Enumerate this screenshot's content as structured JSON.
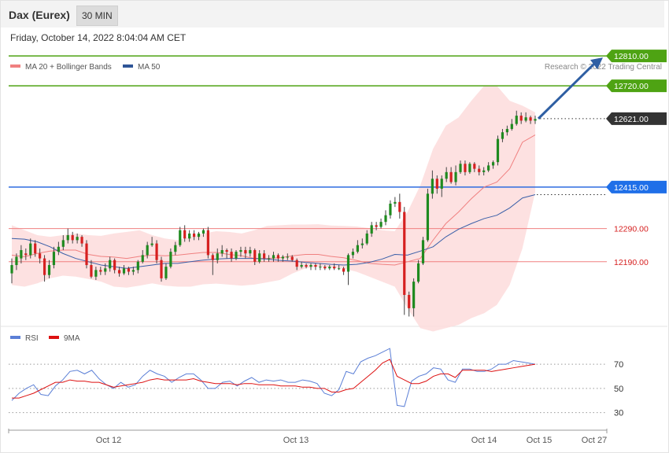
{
  "header": {
    "title": "Dax (Eurex)",
    "timeframe": "30 MIN"
  },
  "datetime": "Friday, October 14, 2022 8:04:04 AM CET",
  "legend": {
    "ma20": {
      "label": "MA 20 + Bollinger Bands",
      "color": "#f08080"
    },
    "ma50": {
      "label": "MA 50",
      "color": "#2f5597"
    }
  },
  "credit": "Research © 2022 Trading Central",
  "rsi_legend": {
    "rsi": {
      "label": "RSI",
      "color": "#5b7fd6"
    },
    "ma9": {
      "label": "9MA",
      "color": "#dd1111"
    }
  },
  "colors": {
    "up": "#1f8a1f",
    "down": "#d62020",
    "resistance": "#4ea313",
    "support": "#2d6be0",
    "level": "#f08080",
    "price": "#333333",
    "arrow": "#2f5fa3",
    "band": "#fddcdc"
  },
  "chart_data": [
    {
      "type": "candlestick",
      "title": "",
      "ylim": [
        12000,
        12860
      ],
      "x_labels": [
        "Oct 12",
        "Oct 13",
        "Oct 14",
        "Oct 15",
        "Oct 27"
      ],
      "levels": [
        {
          "value": 12810.0,
          "label": "12810.00",
          "kind": "resistance"
        },
        {
          "value": 12720.0,
          "label": "12720.00",
          "kind": "resistance"
        },
        {
          "value": 12621.0,
          "label": "12621.00",
          "kind": "price"
        },
        {
          "value": 12415.0,
          "label": "12415.00",
          "kind": "support"
        },
        {
          "value": 12290.0,
          "label": "12290.00",
          "kind": "level"
        },
        {
          "value": 12190.0,
          "label": "12190.00",
          "kind": "level"
        }
      ],
      "candles": [
        [
          12155,
          12180,
          12125,
          12200
        ],
        [
          12180,
          12205,
          12165,
          12215
        ],
        [
          12200,
          12225,
          12185,
          12240
        ],
        [
          12215,
          12210,
          12195,
          12230
        ],
        [
          12210,
          12245,
          12200,
          12260
        ],
        [
          12245,
          12215,
          12205,
          12255
        ],
        [
          12215,
          12200,
          12185,
          12230
        ],
        [
          12200,
          12150,
          12130,
          12210
        ],
        [
          12150,
          12180,
          12140,
          12195
        ],
        [
          12180,
          12220,
          12170,
          12235
        ],
        [
          12220,
          12235,
          12210,
          12250
        ],
        [
          12235,
          12255,
          12225,
          12270
        ],
        [
          12255,
          12270,
          12245,
          12290
        ],
        [
          12270,
          12255,
          12245,
          12280
        ],
        [
          12255,
          12265,
          12245,
          12275
        ],
        [
          12265,
          12245,
          12235,
          12270
        ],
        [
          12245,
          12180,
          12170,
          12255
        ],
        [
          12180,
          12145,
          12140,
          12195
        ],
        [
          12145,
          12165,
          12135,
          12175
        ],
        [
          12165,
          12160,
          12150,
          12175
        ],
        [
          12160,
          12170,
          12150,
          12185
        ],
        [
          12170,
          12195,
          12160,
          12205
        ],
        [
          12195,
          12165,
          12155,
          12200
        ],
        [
          12165,
          12155,
          12145,
          12175
        ],
        [
          12155,
          12170,
          12150,
          12180
        ],
        [
          12170,
          12160,
          12150,
          12175
        ],
        [
          12160,
          12165,
          12150,
          12175
        ],
        [
          12165,
          12190,
          12155,
          12195
        ],
        [
          12190,
          12210,
          12185,
          12225
        ],
        [
          12210,
          12240,
          12200,
          12250
        ],
        [
          12240,
          12245,
          12235,
          12265
        ],
        [
          12245,
          12195,
          12185,
          12255
        ],
        [
          12195,
          12140,
          12130,
          12205
        ],
        [
          12140,
          12175,
          12135,
          12185
        ],
        [
          12175,
          12220,
          12170,
          12230
        ],
        [
          12220,
          12240,
          12210,
          12250
        ],
        [
          12240,
          12285,
          12235,
          12295
        ],
        [
          12285,
          12260,
          12250,
          12300
        ],
        [
          12260,
          12275,
          12250,
          12285
        ],
        [
          12275,
          12265,
          12255,
          12285
        ],
        [
          12265,
          12275,
          12255,
          12280
        ],
        [
          12275,
          12285,
          12265,
          12290
        ],
        [
          12285,
          12210,
          12200,
          12295
        ],
        [
          12210,
          12195,
          12150,
          12215
        ],
        [
          12195,
          12215,
          12185,
          12230
        ],
        [
          12215,
          12225,
          12205,
          12240
        ],
        [
          12225,
          12220,
          12200,
          12230
        ],
        [
          12220,
          12200,
          12190,
          12230
        ],
        [
          12200,
          12220,
          12195,
          12225
        ],
        [
          12220,
          12225,
          12205,
          12235
        ],
        [
          12225,
          12215,
          12200,
          12235
        ],
        [
          12215,
          12225,
          12205,
          12235
        ],
        [
          12225,
          12190,
          12180,
          12230
        ],
        [
          12190,
          12215,
          12185,
          12225
        ],
        [
          12215,
          12200,
          12190,
          12225
        ],
        [
          12200,
          12200,
          12190,
          12210
        ],
        [
          12200,
          12210,
          12190,
          12220
        ],
        [
          12210,
          12200,
          12190,
          12215
        ],
        [
          12200,
          12205,
          12190,
          12210
        ],
        [
          12205,
          12205,
          12195,
          12215
        ],
        [
          12205,
          12195,
          12190,
          12210
        ],
        [
          12195,
          12175,
          12165,
          12200
        ],
        [
          12175,
          12180,
          12170,
          12190
        ],
        [
          12180,
          12175,
          12170,
          12185
        ],
        [
          12175,
          12180,
          12165,
          12185
        ],
        [
          12180,
          12175,
          12165,
          12185
        ],
        [
          12175,
          12175,
          12165,
          12185
        ],
        [
          12175,
          12170,
          12165,
          12180
        ],
        [
          12170,
          12175,
          12165,
          12180
        ],
        [
          12175,
          12170,
          12165,
          12185
        ],
        [
          12170,
          12170,
          12165,
          12180
        ],
        [
          12170,
          12160,
          12150,
          12175
        ],
        [
          12160,
          12210,
          12120,
          12215
        ],
        [
          12210,
          12220,
          12200,
          12230
        ],
        [
          12220,
          12240,
          12215,
          12255
        ],
        [
          12240,
          12245,
          12230,
          12260
        ],
        [
          12245,
          12275,
          12240,
          12285
        ],
        [
          12275,
          12300,
          12265,
          12310
        ],
        [
          12300,
          12295,
          12285,
          12310
        ],
        [
          12295,
          12310,
          12290,
          12320
        ],
        [
          12310,
          12330,
          12300,
          12345
        ],
        [
          12330,
          12365,
          12320,
          12375
        ],
        [
          12365,
          12370,
          12355,
          12385
        ],
        [
          12370,
          12340,
          12320,
          12395
        ],
        [
          12340,
          12090,
          12030,
          12355
        ],
        [
          12090,
          12050,
          12025,
          12100
        ],
        [
          12050,
          12130,
          12025,
          12140
        ],
        [
          12130,
          12185,
          12125,
          12195
        ],
        [
          12185,
          12255,
          12180,
          12265
        ],
        [
          12255,
          12395,
          12250,
          12410
        ],
        [
          12395,
          12440,
          12380,
          12465
        ],
        [
          12440,
          12410,
          12395,
          12450
        ],
        [
          12410,
          12440,
          12385,
          12450
        ],
        [
          12440,
          12460,
          12430,
          12475
        ],
        [
          12460,
          12430,
          12425,
          12475
        ],
        [
          12430,
          12460,
          12420,
          12480
        ],
        [
          12460,
          12485,
          12455,
          12495
        ],
        [
          12485,
          12460,
          12450,
          12495
        ],
        [
          12460,
          12485,
          12455,
          12490
        ],
        [
          12485,
          12470,
          12460,
          12490
        ],
        [
          12470,
          12460,
          12450,
          12480
        ],
        [
          12460,
          12465,
          12450,
          12475
        ],
        [
          12465,
          12480,
          12460,
          12490
        ],
        [
          12480,
          12490,
          12470,
          12495
        ],
        [
          12490,
          12560,
          12480,
          12570
        ],
        [
          12560,
          12580,
          12550,
          12590
        ],
        [
          12580,
          12590,
          12570,
          12600
        ],
        [
          12590,
          12605,
          12585,
          12620
        ],
        [
          12605,
          12630,
          12600,
          12645
        ],
        [
          12630,
          12615,
          12605,
          12640
        ],
        [
          12615,
          12625,
          12610,
          12640
        ],
        [
          12625,
          12615,
          12605,
          12630
        ],
        [
          12615,
          12620,
          12605,
          12630
        ]
      ],
      "bollinger_upper": [
        12300,
        12285,
        12270,
        12265,
        12270,
        12275,
        12270,
        12268,
        12275,
        12280,
        12285,
        12270,
        12260,
        12255,
        12265,
        12275,
        12282,
        12280,
        12275,
        12285,
        12298,
        12300,
        12302,
        12302,
        12303,
        12299,
        12298,
        12296,
        12291,
        12285,
        12282,
        12340,
        12420,
        12530,
        12600,
        12625,
        12675,
        12720,
        12720,
        12675,
        12660,
        12640
      ],
      "bollinger_lower": [
        12120,
        12115,
        12125,
        12140,
        12148,
        12145,
        12138,
        12130,
        12115,
        12112,
        12118,
        12125,
        12118,
        12115,
        12115,
        12122,
        12124,
        12121,
        12118,
        12121,
        12128,
        12135,
        12155,
        12170,
        12175,
        12172,
        12169,
        12160,
        12145,
        12130,
        12115,
        12050,
        11990,
        11980,
        11990,
        12000,
        12020,
        12035,
        12060,
        12120,
        12230,
        12400
      ],
      "ma20": [
        12210,
        12205,
        12215,
        12222,
        12225,
        12225,
        12212,
        12206,
        12204,
        12200,
        12206,
        12210,
        12208,
        12210,
        12214,
        12218,
        12218,
        12212,
        12208,
        12200,
        12200,
        12202,
        12208,
        12212,
        12212,
        12206,
        12202,
        12194,
        12185,
        12182,
        12180,
        12190,
        12200,
        12255,
        12305,
        12340,
        12380,
        12415,
        12430,
        12470,
        12550,
        12572
      ],
      "ma50": [
        12260,
        12258,
        12250,
        12235,
        12215,
        12200,
        12190,
        12180,
        12175,
        12170,
        12175,
        12180,
        12185,
        12185,
        12190,
        12195,
        12198,
        12200,
        12200,
        12200,
        12198,
        12194,
        12192,
        12188,
        12185,
        12182,
        12180,
        12182,
        12188,
        12198,
        12212,
        12210,
        12222,
        12235,
        12265,
        12288,
        12305,
        12320,
        12330,
        12352,
        12382,
        12392
      ]
    },
    {
      "type": "line",
      "title": "",
      "ylim": [
        20,
        85
      ],
      "y_ticks": [
        70,
        50,
        30
      ],
      "series": [
        {
          "name": "RSI",
          "values": [
            40,
            46,
            50,
            53,
            45,
            44,
            52,
            57,
            64,
            65,
            62,
            65,
            58,
            53,
            50,
            55,
            51,
            53,
            60,
            65,
            62,
            60,
            55,
            59,
            62,
            62,
            57,
            50,
            50,
            55,
            56,
            52,
            56,
            59,
            55,
            57,
            56,
            57,
            55,
            55,
            57,
            56,
            54,
            46,
            44,
            49,
            64,
            62,
            72,
            75,
            77,
            80,
            83,
            36,
            35,
            56,
            60,
            62,
            67,
            66,
            57,
            55,
            66,
            66,
            64,
            64,
            66,
            70,
            70,
            73,
            72,
            71,
            70
          ]
        },
        {
          "name": "9MA",
          "values": [
            42,
            42,
            44,
            46,
            49,
            52,
            55,
            55,
            57,
            56,
            56,
            55,
            55,
            53,
            51,
            52,
            53,
            54,
            55,
            57,
            58,
            57,
            57,
            57,
            57,
            58,
            56,
            55,
            54,
            54,
            54,
            53,
            54,
            54,
            53,
            53,
            53,
            52,
            52,
            52,
            51,
            51,
            50,
            50,
            47,
            47,
            49,
            50,
            55,
            60,
            65,
            71,
            74,
            60,
            57,
            54,
            54,
            56,
            60,
            62,
            62,
            59,
            65,
            65,
            65,
            65,
            64,
            65,
            66,
            67,
            68,
            69,
            70
          ]
        }
      ],
      "x_labels": [
        "Oct 12",
        "Oct 13",
        "Oct 14",
        "Oct 15",
        "Oct 27"
      ]
    }
  ]
}
